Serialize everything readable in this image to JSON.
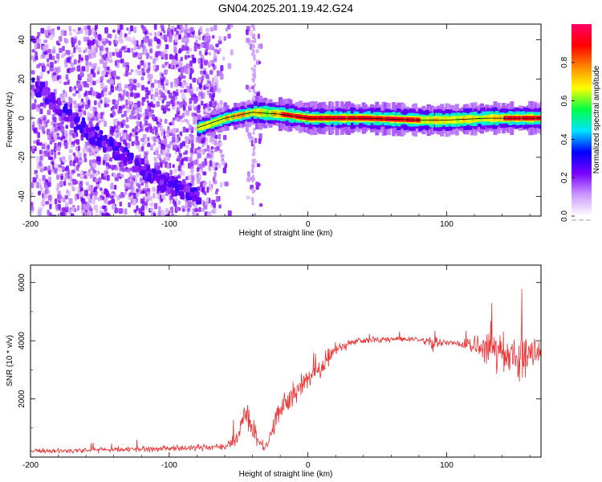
{
  "title": "GN04.2025.201.19.42.G24",
  "chart_data": [
    {
      "type": "heatmap",
      "xlabel": "Height of straight line (km)",
      "ylabel": "Frequency (Hz)",
      "xlim": [
        -200,
        168
      ],
      "ylim": [
        -50,
        48
      ],
      "xticks": [
        -200,
        -100,
        0,
        100
      ],
      "yticks": [
        -40,
        -20,
        0,
        20,
        40
      ],
      "colorbar": {
        "label": "Normalized spectral amplitude",
        "range": [
          0,
          1
        ],
        "ticks": [
          0.0,
          0.2,
          0.4,
          0.6,
          0.8
        ],
        "colors": [
          "#ffffff",
          "#cc99ff",
          "#7a00ff",
          "#0000ff",
          "#00e5ff",
          "#00ff44",
          "#ffff00",
          "#ff8800",
          "#ff0000",
          "#ff0066"
        ]
      },
      "features": [
        {
          "name": "diagonal trace",
          "x": [
            -200,
            -170,
            -140,
            -110,
            -80
          ],
          "y": [
            20,
            0,
            -15,
            -30,
            -38
          ],
          "amplitude": 0.2
        },
        {
          "name": "ridge",
          "x": [
            -80,
            -60,
            -40,
            -20,
            0,
            40,
            80,
            100,
            130,
            165
          ],
          "y": [
            -5,
            0,
            3,
            2,
            0,
            0,
            -1,
            -1,
            0,
            0
          ],
          "amplitude": 0.9
        }
      ]
    },
    {
      "type": "line",
      "xlabel": "Height of straight line (km)",
      "ylabel": "SNR (10 * v/v)",
      "xlim": [
        -200,
        168
      ],
      "ylim": [
        0,
        6600
      ],
      "xticks": [
        -200,
        -100,
        0,
        100
      ],
      "yticks": [
        2000,
        4000,
        6000
      ],
      "color": "#ee3333",
      "envelope": {
        "x": [
          -200,
          -150,
          -100,
          -60,
          -50,
          -45,
          -40,
          -35,
          -30,
          -20,
          -10,
          0,
          10,
          20,
          30,
          40,
          60,
          80,
          90,
          100,
          110,
          120,
          130,
          140,
          150,
          155,
          160,
          168
        ],
        "mean": [
          200,
          250,
          300,
          350,
          700,
          1600,
          1000,
          500,
          300,
          1700,
          2200,
          2700,
          3200,
          3700,
          3900,
          4000,
          4050,
          4050,
          3950,
          3950,
          3900,
          3800,
          3750,
          3650,
          3500,
          3400,
          3500,
          3600
        ],
        "spread": [
          120,
          140,
          140,
          160,
          500,
          1000,
          600,
          300,
          300,
          700,
          800,
          700,
          600,
          300,
          200,
          150,
          150,
          150,
          400,
          200,
          200,
          500,
          900,
          900,
          800,
          1500,
          1000,
          700
        ]
      }
    }
  ]
}
